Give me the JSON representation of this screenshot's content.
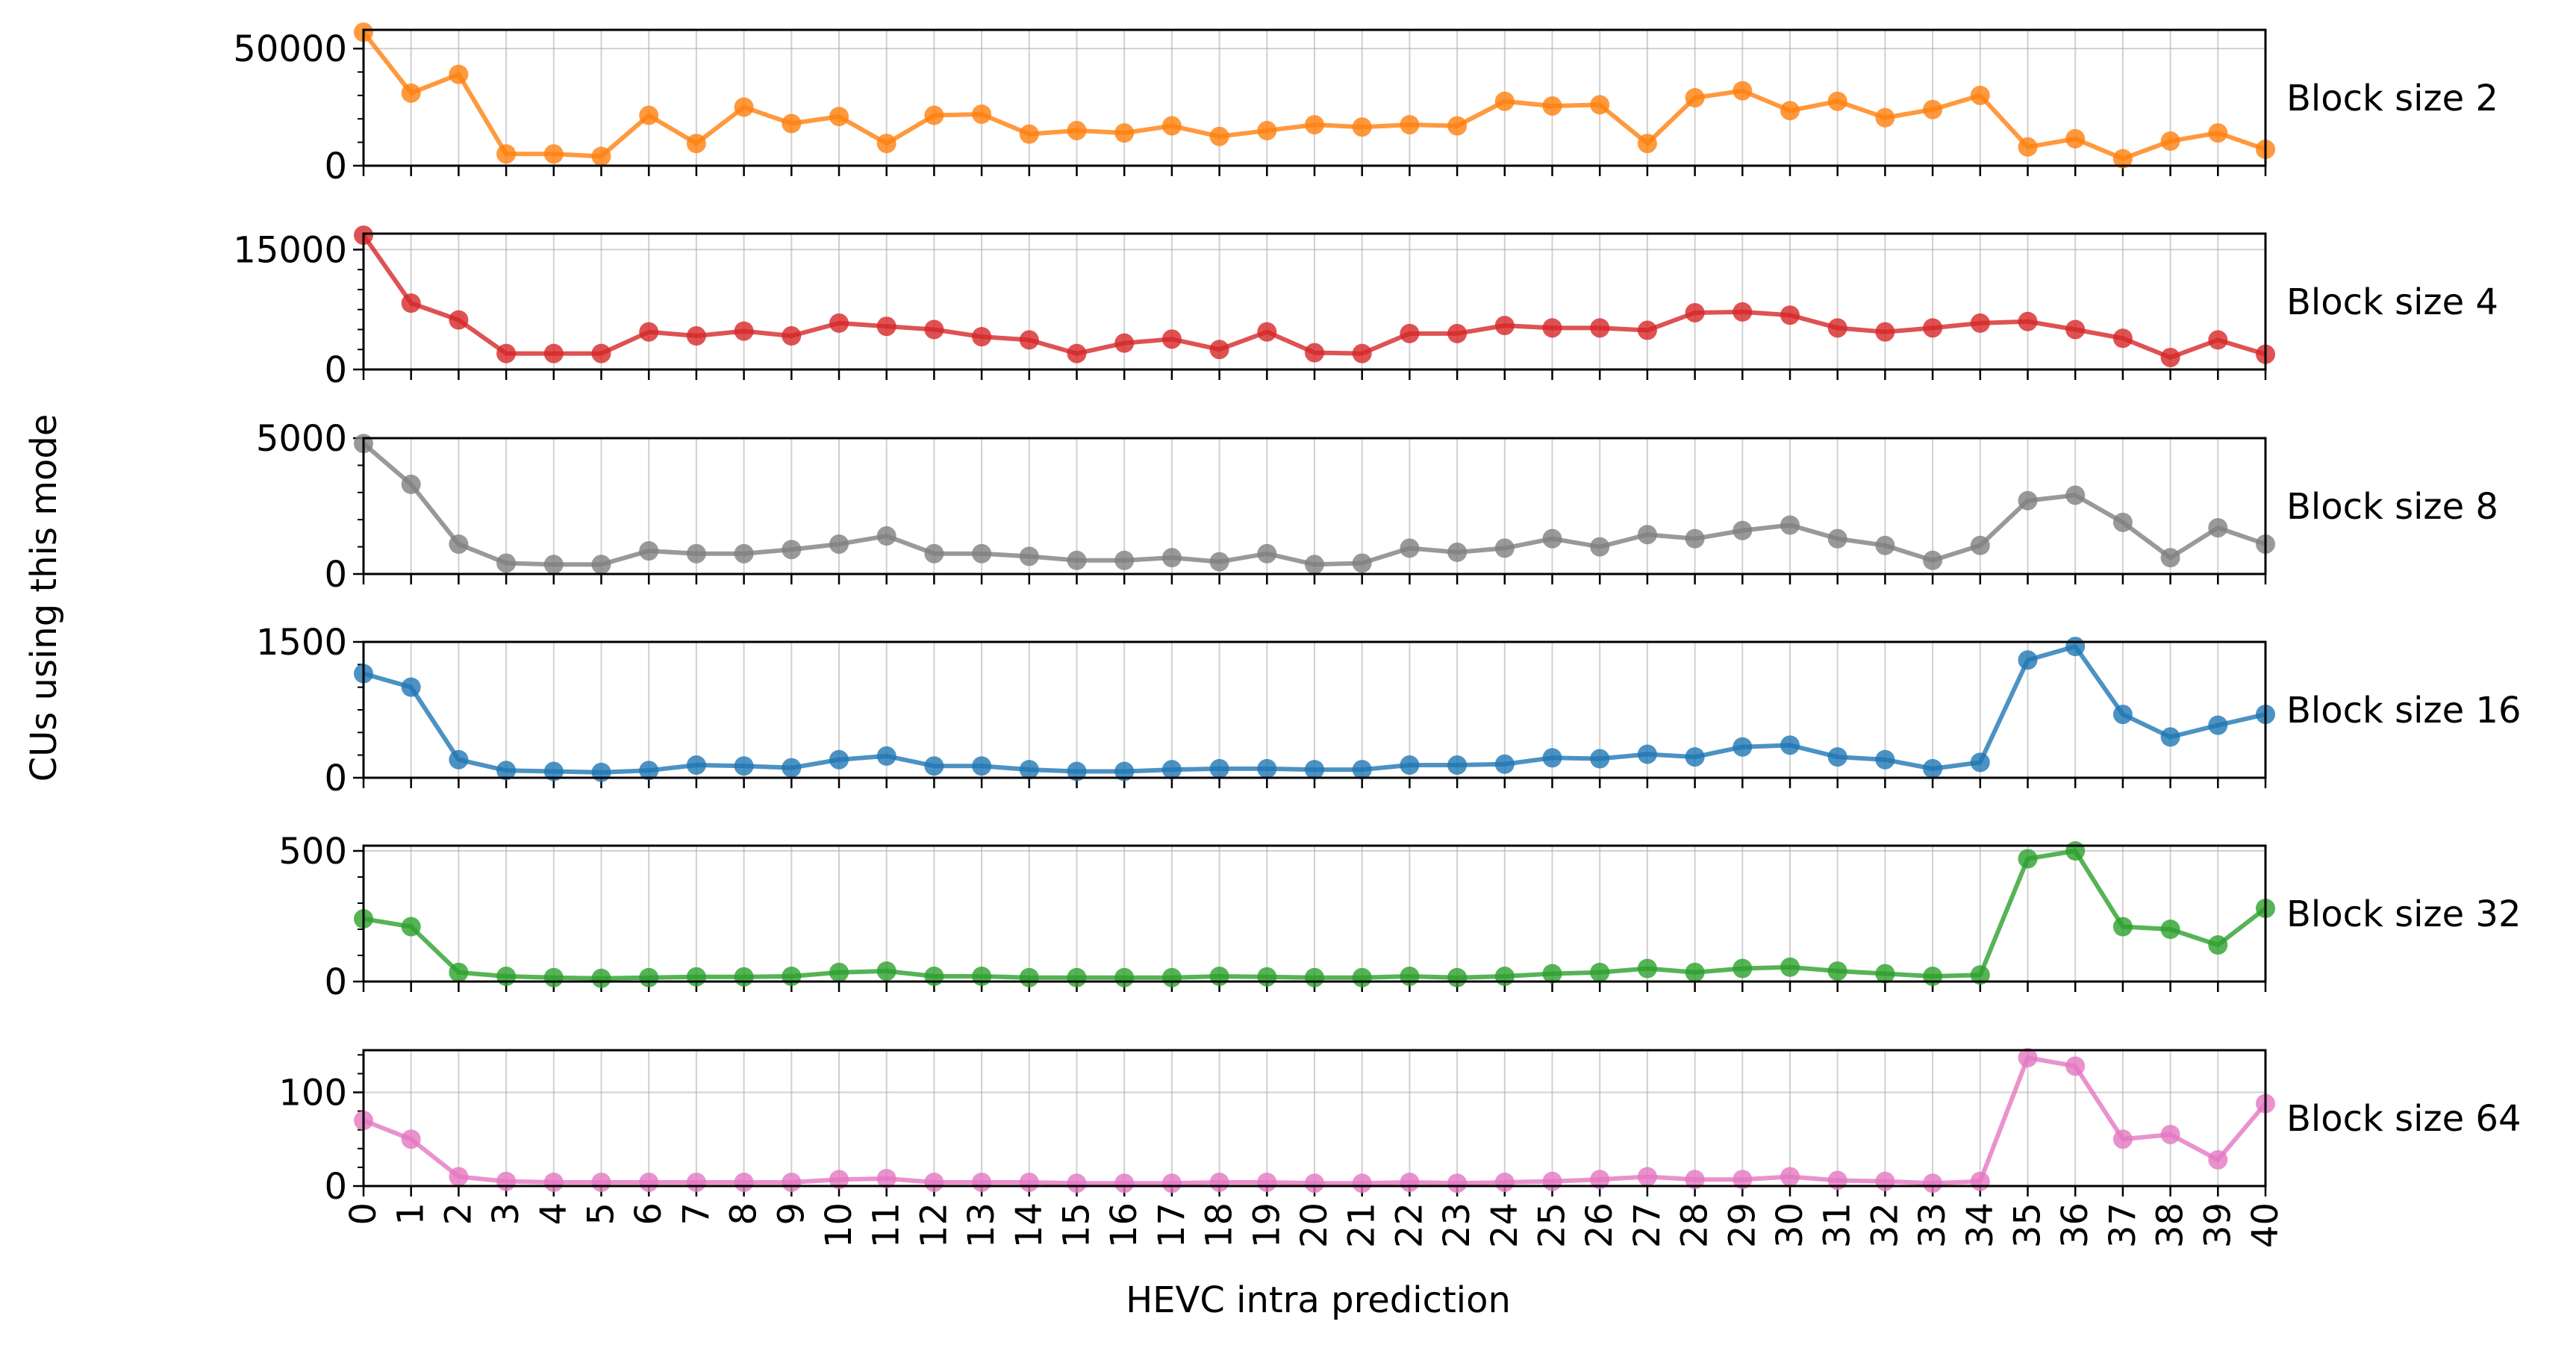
{
  "chart_data": {
    "type": "line",
    "xlabel": "HEVC intra prediction",
    "ylabel": "CUs using this mode",
    "x": [
      0,
      1,
      2,
      3,
      4,
      5,
      6,
      7,
      8,
      9,
      10,
      11,
      12,
      13,
      14,
      15,
      16,
      17,
      18,
      19,
      20,
      21,
      22,
      23,
      24,
      25,
      26,
      27,
      28,
      29,
      30,
      31,
      32,
      33,
      34,
      35,
      36,
      37,
      38,
      39,
      40
    ],
    "xlim": [
      0,
      40
    ],
    "grid": "vertical",
    "panels": [
      {
        "name": "Block size 2",
        "color": "#ff7f0e",
        "ylim": [
          0,
          58000
        ],
        "yticks": [
          0,
          50000
        ],
        "yminor_step": 10000,
        "values": [
          57000,
          31000,
          39000,
          5000,
          5000,
          4000,
          21500,
          9500,
          25000,
          18000,
          21000,
          9500,
          21500,
          22000,
          13500,
          15000,
          14000,
          17000,
          12500,
          15000,
          17500,
          16500,
          17500,
          17000,
          27500,
          25500,
          26000,
          9500,
          29000,
          32000,
          23500,
          27500,
          20500,
          24000,
          30000,
          8000,
          11500,
          3000,
          10500,
          14000,
          7000
        ]
      },
      {
        "name": "Block size 4",
        "color": "#d62728",
        "ylim": [
          0,
          17000
        ],
        "yticks": [
          0,
          15000
        ],
        "yminor_step": 2500,
        "values": [
          16800,
          8300,
          6200,
          2000,
          2000,
          2000,
          4700,
          4200,
          4800,
          4200,
          5800,
          5400,
          5000,
          4100,
          3700,
          2000,
          3300,
          3800,
          2500,
          4700,
          2100,
          2000,
          4500,
          4500,
          5500,
          5200,
          5200,
          4900,
          7100,
          7200,
          6800,
          5200,
          4700,
          5200,
          5800,
          6000,
          5000,
          3900,
          1500,
          3700,
          1900
        ]
      },
      {
        "name": "Block size 8",
        "color": "#7f7f7f",
        "ylim": [
          0,
          5000
        ],
        "yticks": [
          0,
          5000
        ],
        "yminor_step": 1000,
        "values": [
          4800,
          3300,
          1100,
          400,
          350,
          350,
          850,
          750,
          750,
          900,
          1100,
          1400,
          750,
          750,
          650,
          500,
          500,
          600,
          450,
          750,
          350,
          400,
          950,
          800,
          950,
          1300,
          1000,
          1450,
          1300,
          1600,
          1800,
          1300,
          1050,
          500,
          1050,
          2700,
          2900,
          1900,
          600,
          1700,
          1100
        ]
      },
      {
        "name": "Block size 16",
        "color": "#1f77b4",
        "ylim": [
          0,
          1500
        ],
        "yticks": [
          0,
          1500
        ],
        "yminor_step": 250,
        "values": [
          1150,
          1000,
          200,
          80,
          70,
          60,
          80,
          140,
          130,
          110,
          200,
          240,
          130,
          130,
          90,
          70,
          70,
          90,
          100,
          100,
          90,
          90,
          140,
          140,
          150,
          220,
          210,
          260,
          230,
          340,
          360,
          230,
          200,
          100,
          170,
          1300,
          1450,
          700,
          450,
          580,
          700
        ]
      },
      {
        "name": "Block size 32",
        "color": "#2ca02c",
        "ylim": [
          0,
          520
        ],
        "yticks": [
          0,
          500
        ],
        "yminor_step": 100,
        "values": [
          240,
          210,
          35,
          20,
          15,
          12,
          15,
          18,
          18,
          20,
          35,
          40,
          20,
          20,
          15,
          15,
          15,
          15,
          20,
          18,
          15,
          15,
          20,
          15,
          20,
          30,
          35,
          50,
          35,
          50,
          55,
          40,
          30,
          20,
          25,
          470,
          500,
          210,
          200,
          140,
          280
        ]
      },
      {
        "name": "Block size 64",
        "color": "#e377c2",
        "ylim": [
          0,
          145
        ],
        "yticks": [
          0,
          100
        ],
        "yminor_step": 20,
        "values": [
          70,
          50,
          10,
          5,
          4,
          4,
          4,
          4,
          4,
          4,
          7,
          8,
          4,
          4,
          4,
          3,
          3,
          3,
          4,
          4,
          3,
          3,
          4,
          3,
          4,
          5,
          7,
          10,
          7,
          7,
          10,
          6,
          5,
          3,
          5,
          137,
          128,
          50,
          55,
          28,
          88
        ]
      }
    ]
  }
}
